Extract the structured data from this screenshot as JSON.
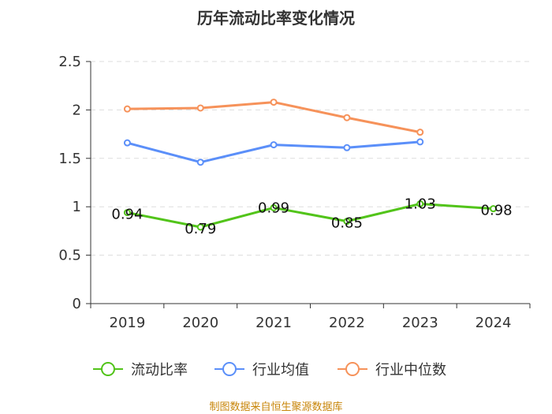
{
  "chart_data": {
    "type": "line",
    "title": "历年流动比率变化情况",
    "categories": [
      "2019",
      "2020",
      "2021",
      "2022",
      "2023",
      "2024"
    ],
    "ylim": [
      0,
      2.5
    ],
    "yticks": [
      "0",
      "0.5",
      "1",
      "1.5",
      "2",
      "2.5"
    ],
    "grid": true,
    "legend_position": "bottom",
    "series": [
      {
        "name": "流动比率",
        "color": "#52c41a",
        "values": [
          0.94,
          0.79,
          0.99,
          0.85,
          1.03,
          0.98
        ],
        "labels": [
          "0.94",
          "0.79",
          "0.99",
          "0.85",
          "1.03",
          "0.98"
        ]
      },
      {
        "name": "行业均值",
        "color": "#5b8ff9",
        "values": [
          1.66,
          1.46,
          1.64,
          1.61,
          1.67,
          null
        ]
      },
      {
        "name": "行业中位数",
        "color": "#f6925a",
        "values": [
          2.01,
          2.02,
          2.08,
          1.92,
          1.77,
          null
        ]
      }
    ],
    "source": "制图数据来自恒生聚源数据库"
  }
}
